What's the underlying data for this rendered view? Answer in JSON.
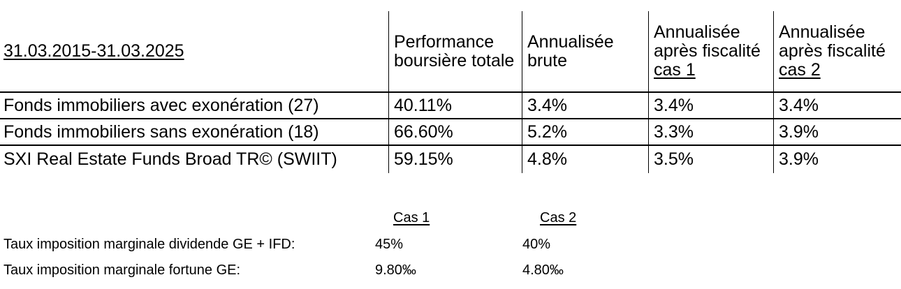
{
  "table": {
    "period_label": "31.03.2015-31.03.2025",
    "columns": [
      {
        "line1": "Performance",
        "line2": "boursière totale"
      },
      {
        "line1": "Annualisée",
        "line2": "brute"
      },
      {
        "line1": "Annualisée",
        "line2": "après fiscalité",
        "underlined": "cas 1"
      },
      {
        "line1": "Annualisée",
        "line2": "après fiscalité",
        "underlined": "cas 2"
      }
    ],
    "rows": [
      {
        "label": "Fonds immobiliers avec exonération (27)",
        "perf": "40.11%",
        "brute": "3.4%",
        "cas1": "3.4%",
        "cas2": "3.4%"
      },
      {
        "label": "Fonds immobiliers sans exonération (18)",
        "perf": "66.60%",
        "brute": "5.2%",
        "cas1": "3.3%",
        "cas2": "3.9%"
      },
      {
        "label": "SXI Real Estate Funds Broad TR© (SWIIT)",
        "perf": "59.15%",
        "brute": "4.8%",
        "cas1": "3.5%",
        "cas2": "3.9%"
      }
    ]
  },
  "assumptions": {
    "cas1_header": "Cas 1",
    "cas2_header": "Cas 2",
    "rows": [
      {
        "label": "Taux imposition marginale dividende GE + IFD:",
        "cas1": "45%",
        "cas2": "40%"
      },
      {
        "label": "Taux imposition marginale fortune GE:",
        "cas1": "9.80‰",
        "cas2": "4.80‰"
      }
    ]
  },
  "colors": {
    "text": "#000000",
    "lines": "#000000",
    "background": "#ffffff"
  }
}
